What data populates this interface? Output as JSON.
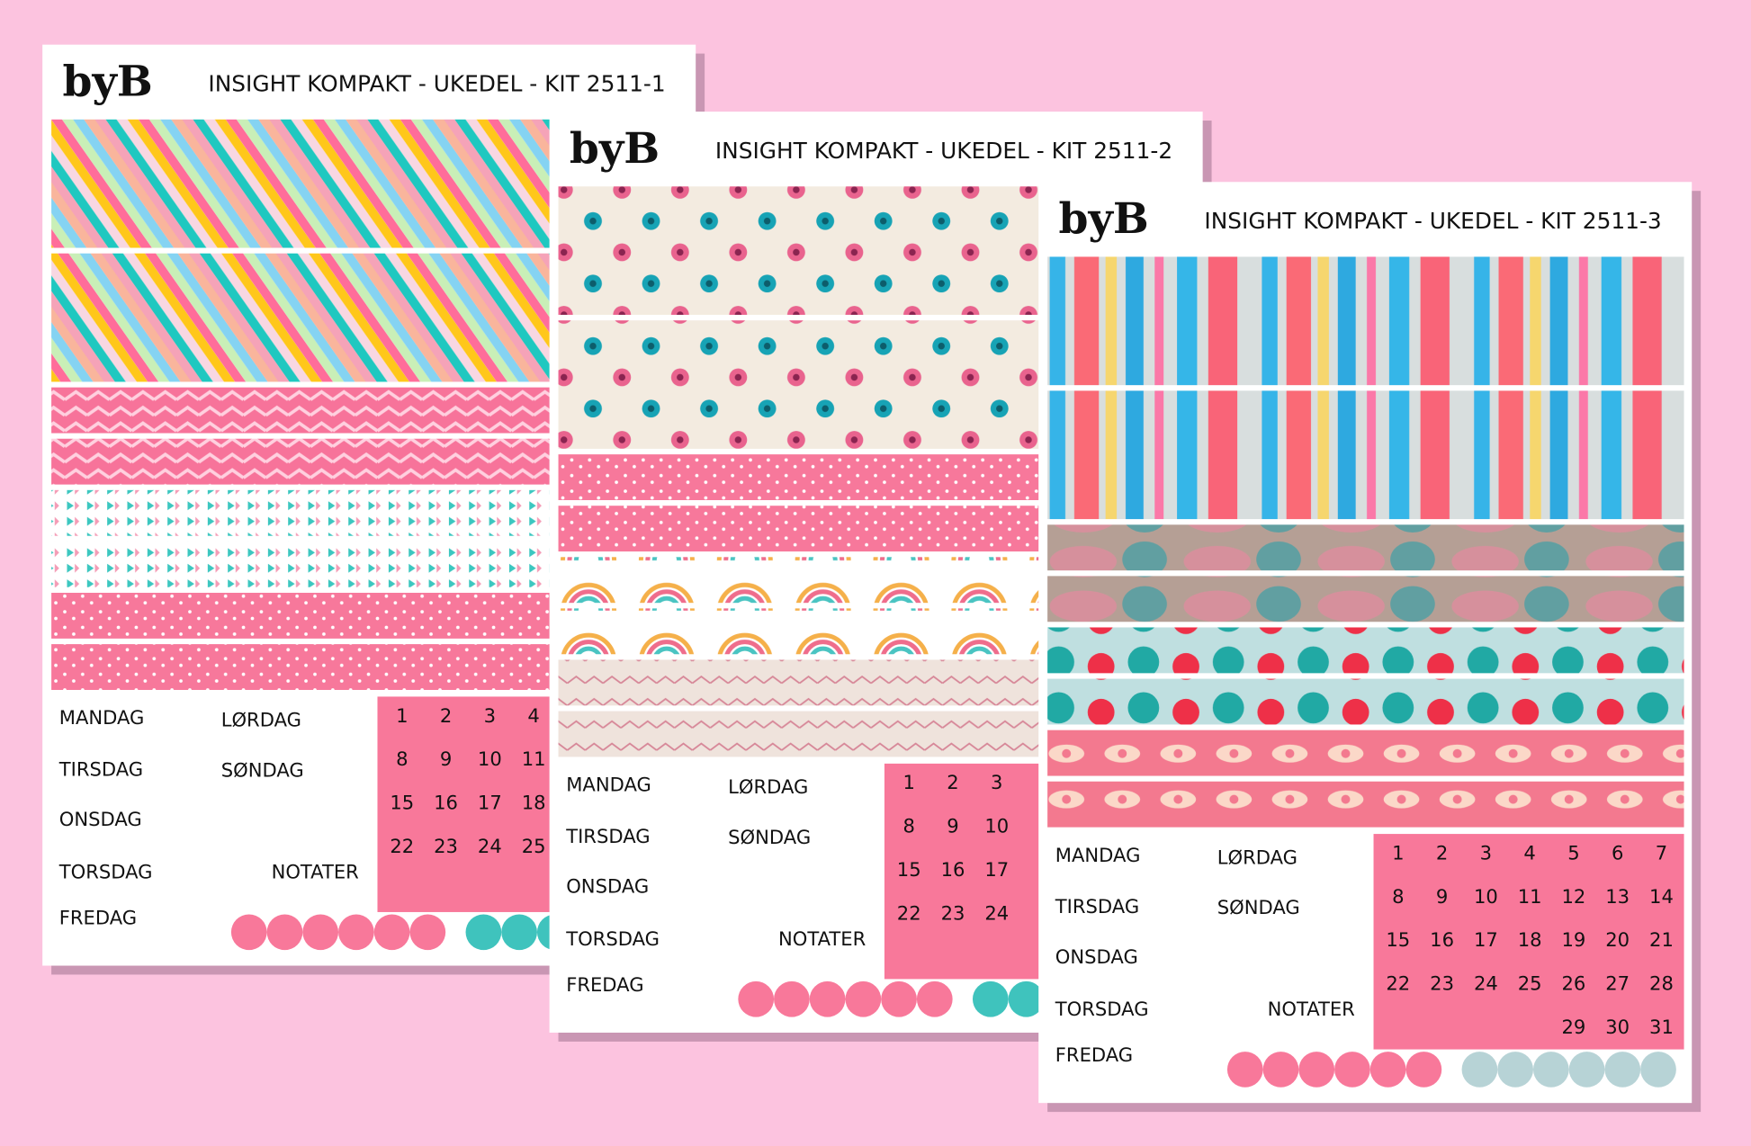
{
  "sheets": [
    {
      "logo": "byB",
      "title": "INSIGHT KOMPAKT - UKEDEL - KIT 2511-1",
      "days": [
        "MANDAG",
        "TIRSDAG",
        "ONSDAG",
        "TORSDAG",
        "FREDAG",
        "LØRDAG",
        "SØNDAG"
      ],
      "notes": "NOTATER",
      "calendar": [
        [
          1,
          2,
          3,
          4
        ],
        [
          8,
          9,
          10,
          11
        ],
        [
          15,
          16,
          17,
          18
        ],
        [
          22,
          23,
          24,
          25
        ]
      ]
    },
    {
      "logo": "byB",
      "title": "INSIGHT KOMPAKT - UKEDEL - KIT 2511-2",
      "days": [
        "MANDAG",
        "TIRSDAG",
        "ONSDAG",
        "TORSDAG",
        "FREDAG",
        "LØRDAG",
        "SØNDAG"
      ],
      "notes": "NOTATER",
      "calendar": [
        [
          1,
          2,
          3
        ],
        [
          8,
          9,
          10
        ],
        [
          15,
          16,
          17
        ],
        [
          22,
          23,
          24
        ]
      ]
    },
    {
      "logo": "byB",
      "title": "INSIGHT KOMPAKT - UKEDEL - KIT 2511-3",
      "days": [
        "MANDAG",
        "TIRSDAG",
        "ONSDAG",
        "TORSDAG",
        "FREDAG",
        "LØRDAG",
        "SØNDAG"
      ],
      "notes": "NOTATER",
      "calendar": [
        [
          1,
          2,
          3,
          4,
          5,
          6,
          7
        ],
        [
          8,
          9,
          10,
          11,
          12,
          13,
          14
        ],
        [
          15,
          16,
          17,
          18,
          19,
          20,
          21
        ],
        [
          22,
          23,
          24,
          25,
          26,
          27,
          28
        ],
        [
          null,
          null,
          null,
          null,
          29,
          30,
          31
        ]
      ]
    }
  ]
}
